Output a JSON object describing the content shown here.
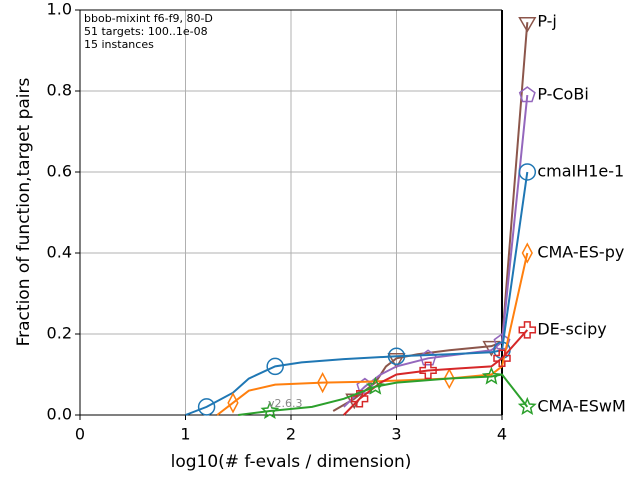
{
  "chart_data": {
    "type": "line",
    "annotations": [
      "bbob-mixint f6-f9, 80-D",
      "51 targets: 100..1e-08",
      "15 instances"
    ],
    "version": "v2.6.3",
    "xlabel": "log10(# f-evals / dimension)",
    "ylabel": "Fraction of function,target pairs",
    "xlim": [
      0,
      4
    ],
    "ylim": [
      0,
      1
    ],
    "xticks": [
      0,
      1,
      2,
      3,
      4
    ],
    "yticks": [
      {
        "value": 0,
        "label": "0.0"
      },
      0.2,
      0.4,
      0.6,
      0.8,
      {
        "value": 1,
        "label": "1.0"
      }
    ],
    "grid": true,
    "series": [
      {
        "name": "P-j",
        "color": "#8c564b",
        "marker": "triangle-down",
        "x": [
          2.4,
          2.6,
          2.8,
          2.9,
          3.0,
          3.2,
          3.5,
          3.9,
          4.0,
          4.24
        ],
        "values": [
          0.01,
          0.04,
          0.08,
          0.12,
          0.14,
          0.15,
          0.16,
          0.17,
          0.18,
          0.97
        ]
      },
      {
        "name": "P-CoBi",
        "color": "#9467bd",
        "marker": "pentagon",
        "x": [
          2.5,
          2.7,
          2.85,
          3.0,
          3.3,
          3.6,
          3.9,
          4.0,
          4.24
        ],
        "values": [
          0.02,
          0.07,
          0.1,
          0.12,
          0.14,
          0.15,
          0.16,
          0.18,
          0.79
        ]
      },
      {
        "name": "cmaIH1e-1",
        "color": "#1f77b4",
        "marker": "circle",
        "x": [
          1.0,
          1.2,
          1.45,
          1.6,
          1.85,
          2.1,
          2.5,
          3.0,
          3.5,
          3.9,
          4.0,
          4.24
        ],
        "values": [
          0,
          0.02,
          0.055,
          0.09,
          0.12,
          0.13,
          0.138,
          0.145,
          0.15,
          0.155,
          0.16,
          0.6
        ]
      },
      {
        "name": "CMA-ES-py",
        "color": "#ff7f0e",
        "marker": "diamond",
        "x": [
          1.3,
          1.45,
          1.6,
          1.85,
          2.3,
          2.7,
          3.0,
          3.5,
          3.9,
          4.0,
          4.24
        ],
        "values": [
          0,
          0.03,
          0.06,
          0.075,
          0.08,
          0.082,
          0.085,
          0.09,
          0.1,
          0.12,
          0.4
        ]
      },
      {
        "name": "DE-scipy",
        "color": "#d62728",
        "marker": "plus",
        "x": [
          2.5,
          2.65,
          2.85,
          3.0,
          3.3,
          3.6,
          3.9,
          4.0,
          4.24
        ],
        "values": [
          0,
          0.04,
          0.08,
          0.1,
          0.11,
          0.115,
          0.12,
          0.14,
          0.21
        ]
      },
      {
        "name": "CMA-ESwM",
        "color": "#2ca02c",
        "marker": "star",
        "x": [
          1.5,
          1.8,
          2.2,
          2.5,
          2.8,
          3.0,
          3.5,
          3.9,
          4.0,
          4.24
        ],
        "values": [
          0,
          0.01,
          0.02,
          0.04,
          0.07,
          0.08,
          0.09,
          0.095,
          0.1,
          0.02
        ]
      }
    ]
  }
}
